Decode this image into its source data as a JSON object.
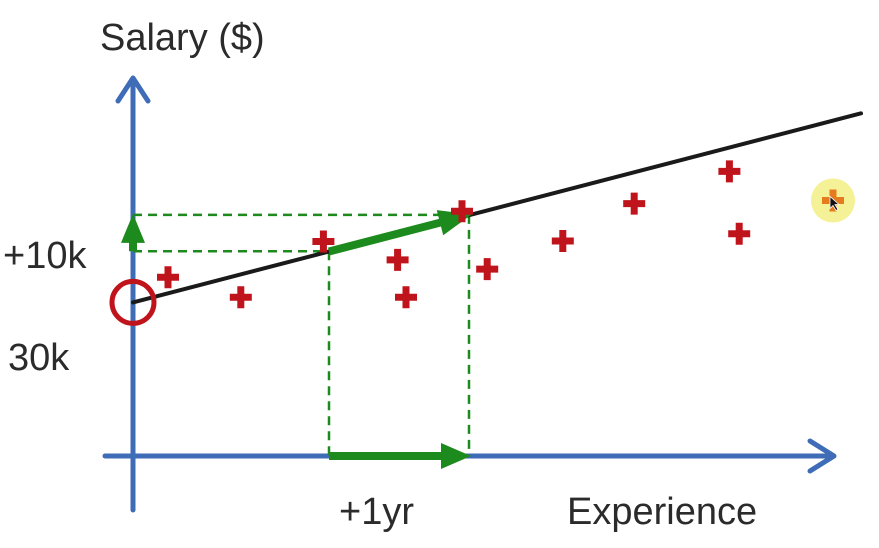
{
  "chart_data": {
    "type": "scatter",
    "title": "",
    "xlabel": "Experience",
    "ylabel": "Salary ($)",
    "y_tick_labels": [
      "30k",
      "+10k"
    ],
    "x_annotation": "+1yr",
    "points": [
      {
        "x": 0.25,
        "y": 34.9
      },
      {
        "x": 0.77,
        "y": 31.0
      },
      {
        "x": 1.36,
        "y": 41.9
      },
      {
        "x": 1.89,
        "y": 38.3
      },
      {
        "x": 1.95,
        "y": 31.0
      },
      {
        "x": 2.35,
        "y": 47.8
      },
      {
        "x": 2.53,
        "y": 36.5
      },
      {
        "x": 3.07,
        "y": 42.0
      },
      {
        "x": 3.58,
        "y": 49.3
      },
      {
        "x": 4.26,
        "y": 55.6
      },
      {
        "x": 4.33,
        "y": 43.4
      },
      {
        "x": 5.0,
        "y": 49.9
      }
    ],
    "fit_line": {
      "intercept": 30,
      "slope": 7.1,
      "x_end": 5.2
    },
    "annotations": {
      "delta_x": {
        "from": 1.4,
        "to": 2.4
      },
      "delta_y": {
        "from": 40,
        "to": 47.1
      }
    },
    "xlim": [
      0,
      5.0
    ],
    "ylim": [
      0,
      64
    ],
    "grid": false,
    "legend": "none",
    "colors": {
      "axis": "#3f6cb6",
      "points": "#c0141c",
      "fit_line": "#1a1a1a",
      "guides": "#1d8a1d",
      "intercept_circle": "#c0141c",
      "cursor_highlight": "#f3ef8c",
      "cursor_point": "#e67a1e"
    }
  }
}
